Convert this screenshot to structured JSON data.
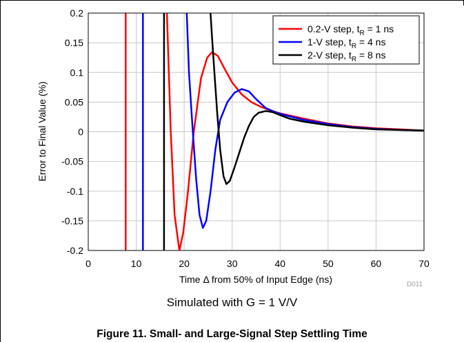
{
  "caption": {
    "note": "Simulated with G = 1 V/V",
    "figure": "Figure 11. Small- and Large-Signal Step Settling Time",
    "code": "D011"
  },
  "chart_data": {
    "type": "line",
    "xlabel": "Time Δ from 50% of Input Edge (ns)",
    "ylabel": "Error to Final Value (%)",
    "xlim": [
      0,
      70
    ],
    "ylim": [
      -0.2,
      0.2
    ],
    "xticks": [
      0,
      10,
      20,
      30,
      40,
      50,
      60,
      70
    ],
    "xtick_labels": [
      "0",
      "10",
      "20",
      "30",
      "40",
      "50",
      "60",
      "70"
    ],
    "yticks": [
      -0.2,
      -0.15,
      -0.1,
      -0.05,
      0,
      0.05,
      0.1,
      0.15,
      0.2
    ],
    "ytick_labels": [
      "-0.2",
      "-0.15",
      "-0.1",
      "-0.05",
      "0",
      "0.05",
      "0.1",
      "0.15",
      "0.2"
    ],
    "grid": true,
    "legend_position": "top-right",
    "series": [
      {
        "name": "0.2-V step, tR = 1 ns",
        "legend_main": "0.2-V step, t",
        "legend_sub": "R",
        "legend_tail": " = 1 ns",
        "color": "#ff0000",
        "segments": [
          [
            [
              7.8,
              -0.25
            ],
            [
              7.8,
              0.25
            ]
          ],
          [
            [
              16.2,
              0.25
            ],
            [
              17.2,
              0.0
            ],
            [
              18.0,
              -0.14
            ],
            [
              19.0,
              -0.2
            ],
            [
              19.8,
              -0.17
            ],
            [
              20.8,
              -0.1
            ],
            [
              22.0,
              0.0
            ],
            [
              23.5,
              0.09
            ],
            [
              24.8,
              0.125
            ],
            [
              25.8,
              0.134
            ],
            [
              27.0,
              0.128
            ],
            [
              28.5,
              0.105
            ],
            [
              30.0,
              0.083
            ],
            [
              32.0,
              0.063
            ],
            [
              34.0,
              0.05
            ],
            [
              36.0,
              0.042
            ],
            [
              38.0,
              0.036
            ],
            [
              40.0,
              0.031
            ],
            [
              45.0,
              0.022
            ],
            [
              50.0,
              0.014
            ],
            [
              55.0,
              0.009
            ],
            [
              60.0,
              0.006
            ],
            [
              65.0,
              0.004
            ],
            [
              70.0,
              0.002
            ]
          ]
        ]
      },
      {
        "name": "1-V step, tR = 4 ns",
        "legend_main": "1-V step, t",
        "legend_sub": "R",
        "legend_tail": " = 4 ns",
        "color": "#0000ff",
        "segments": [
          [
            [
              11.4,
              -0.25
            ],
            [
              11.4,
              0.25
            ]
          ],
          [
            [
              20.3,
              0.25
            ],
            [
              21.0,
              0.1
            ],
            [
              21.8,
              0.0
            ],
            [
              22.5,
              -0.08
            ],
            [
              23.2,
              -0.14
            ],
            [
              23.9,
              -0.162
            ],
            [
              24.6,
              -0.15
            ],
            [
              25.5,
              -0.1
            ],
            [
              26.5,
              -0.03
            ],
            [
              27.5,
              0.02
            ],
            [
              29.0,
              0.05
            ],
            [
              30.5,
              0.066
            ],
            [
              32.0,
              0.072
            ],
            [
              33.5,
              0.068
            ],
            [
              35.0,
              0.055
            ],
            [
              37.0,
              0.04
            ],
            [
              39.0,
              0.033
            ],
            [
              41.0,
              0.028
            ],
            [
              45.0,
              0.02
            ],
            [
              50.0,
              0.013
            ],
            [
              55.0,
              0.008
            ],
            [
              60.0,
              0.005
            ],
            [
              65.0,
              0.003
            ],
            [
              70.0,
              0.002
            ]
          ]
        ]
      },
      {
        "name": "2-V step, tR = 8 ns",
        "legend_main": "2-V step, t",
        "legend_sub": "R",
        "legend_tail": " = 8 ns",
        "color": "#000000",
        "segments": [
          [
            [
              15.8,
              -0.25
            ],
            [
              15.8,
              0.25
            ]
          ],
          [
            [
              25.1,
              0.25
            ],
            [
              25.8,
              0.16
            ],
            [
              26.3,
              0.1
            ],
            [
              26.9,
              0.03
            ],
            [
              27.5,
              -0.03
            ],
            [
              28.2,
              -0.075
            ],
            [
              28.8,
              -0.088
            ],
            [
              29.5,
              -0.083
            ],
            [
              30.5,
              -0.06
            ],
            [
              31.5,
              -0.035
            ],
            [
              32.5,
              -0.01
            ],
            [
              33.5,
              0.01
            ],
            [
              34.5,
              0.025
            ],
            [
              35.5,
              0.032
            ],
            [
              37.0,
              0.035
            ],
            [
              38.5,
              0.033
            ],
            [
              40.0,
              0.028
            ],
            [
              42.0,
              0.022
            ],
            [
              45.0,
              0.017
            ],
            [
              50.0,
              0.011
            ],
            [
              55.0,
              0.007
            ],
            [
              60.0,
              0.004
            ],
            [
              65.0,
              0.003
            ],
            [
              70.0,
              0.002
            ]
          ]
        ]
      }
    ]
  }
}
